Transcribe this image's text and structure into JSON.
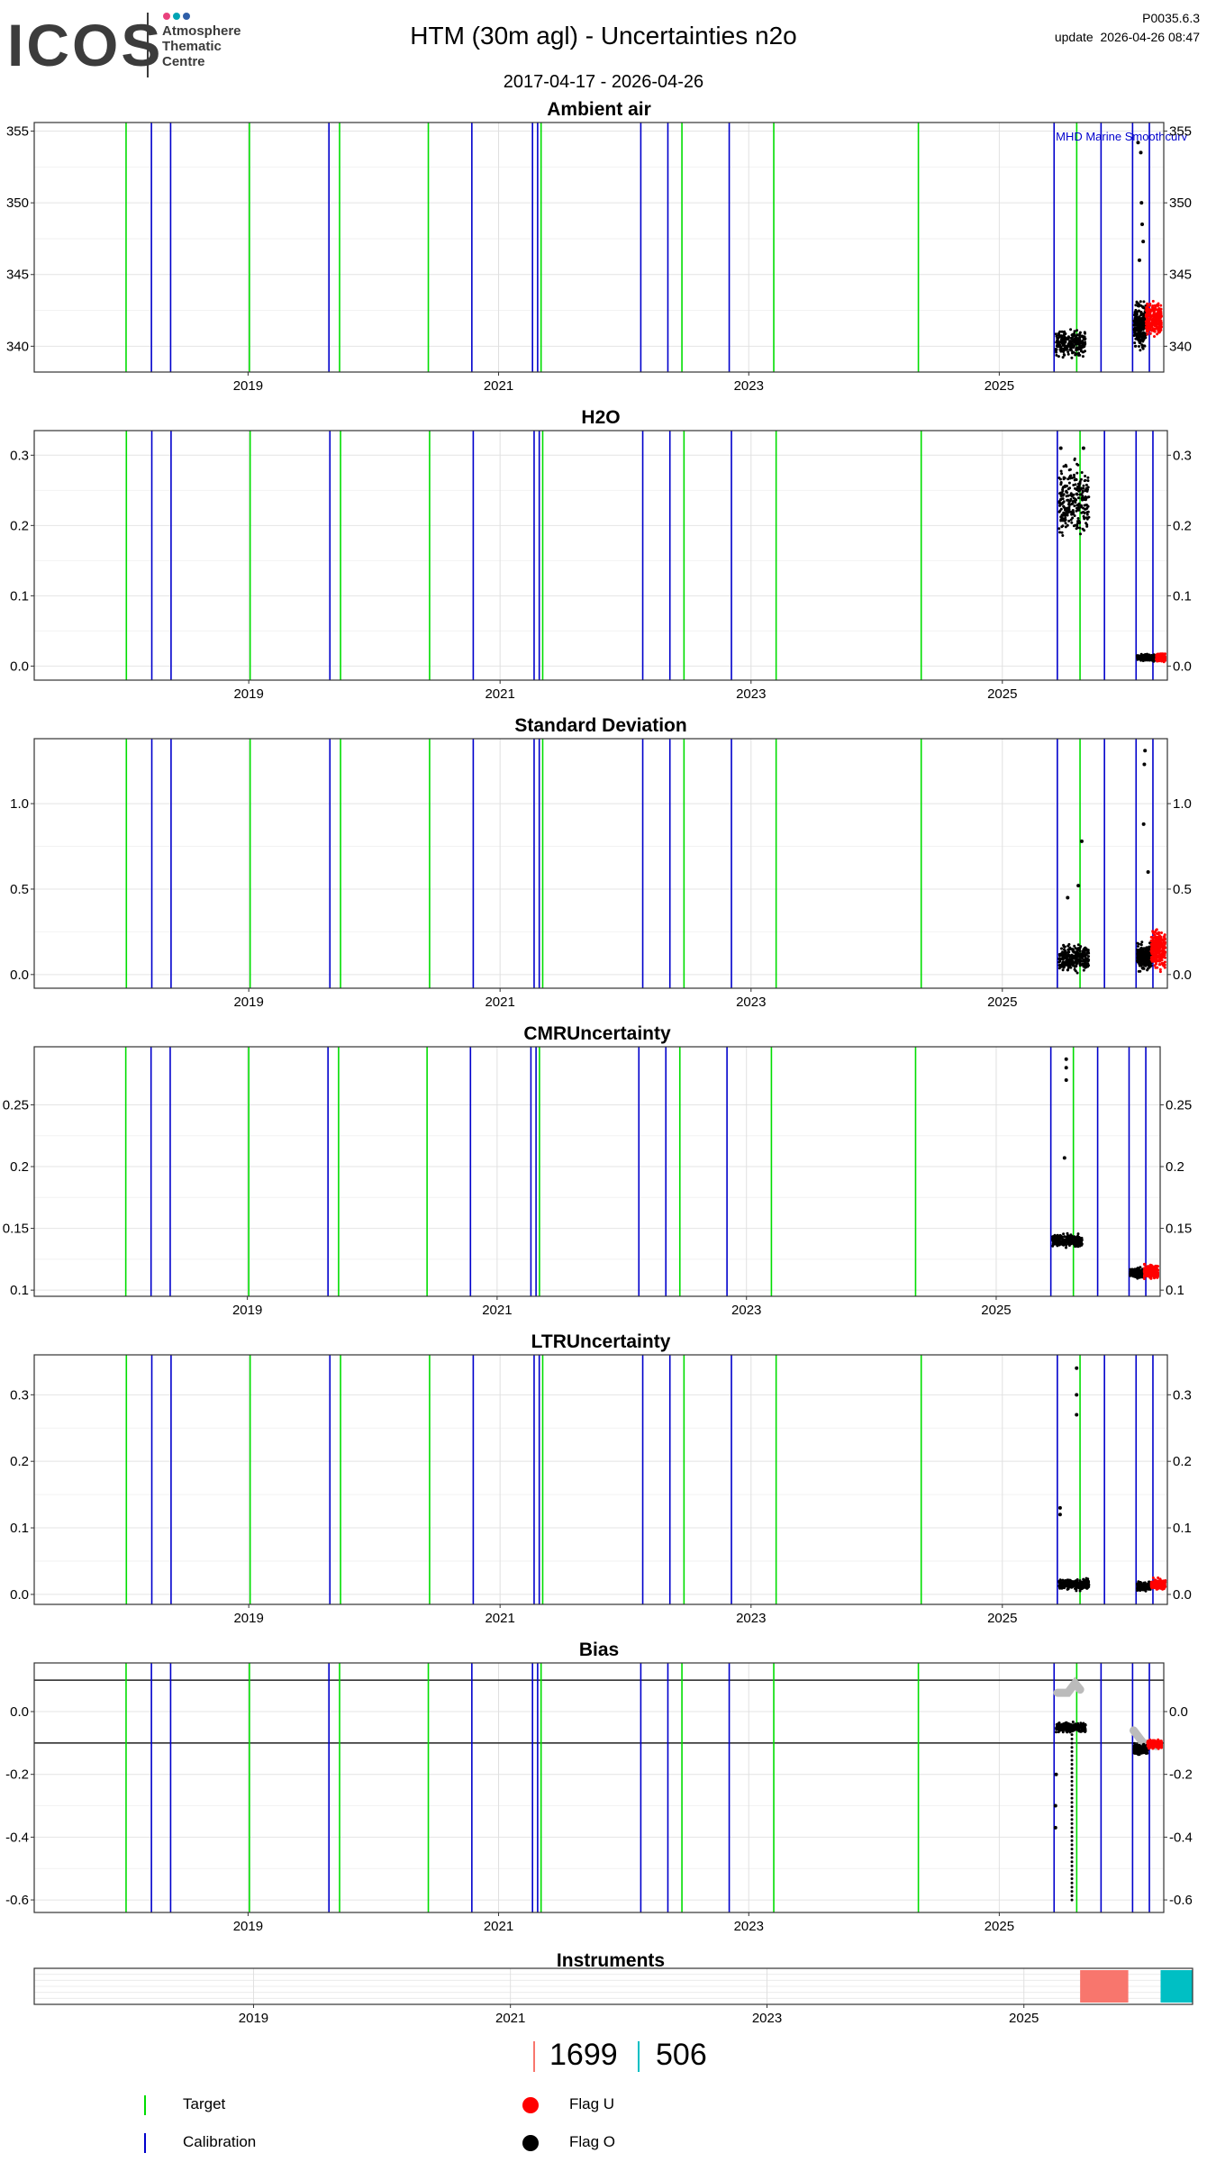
{
  "header": {
    "logo_text": "ICOS",
    "logo_sub": [
      "Atmosphere",
      "Thematic",
      "Centre"
    ],
    "title": "HTM  (30m agl) - Uncertainties n2o",
    "date_range": "2017-04-17 - 2026-04-26",
    "version": "P0035.6.3",
    "update": "update  2026-04-26 08:47"
  },
  "colors": {
    "target": "#00dd00",
    "calibration": "#0000cc",
    "flag_u": "#ff0000",
    "flag_o": "#000000",
    "instrument_a": "#f8766d",
    "instrument_b": "#00bfc4",
    "smooth": "#bbbbbb"
  },
  "chart_data": {
    "type": "scatter",
    "x_range": [
      "2017-04-17",
      "2026-04-26"
    ],
    "x_ticks": [
      "2019",
      "2021",
      "2023",
      "2025"
    ],
    "target_lines": [
      "2018-01-10",
      "2019-01-05",
      "2019-09-25",
      "2020-06-10",
      "2021-05-05",
      "2022-06-20",
      "2023-03-15",
      "2024-05-10",
      "2025-08-15"
    ],
    "calibration_lines": [
      "2018-03-25",
      "2018-05-20",
      "2019-08-25",
      "2020-10-15",
      "2021-04-10",
      "2021-04-25",
      "2022-02-20",
      "2022-05-10",
      "2022-11-05",
      "2025-06-10",
      "2025-10-25",
      "2026-01-25",
      "2026-03-15"
    ],
    "panels": [
      {
        "title": "Ambient air",
        "y_ticks": [
          340,
          345,
          350,
          355
        ],
        "y_range": [
          338.2,
          355.6
        ],
        "annotation": "MHD Marine Smoothcurv",
        "clusters": [
          {
            "flag": "O",
            "x_start": "2025-06-15",
            "x_end": "2025-09-10",
            "y_center": 340.2,
            "spread": 0.7
          },
          {
            "flag": "O",
            "x_start": "2026-01-28",
            "x_end": "2026-03-05",
            "y_center": 341.5,
            "spread": 1.2
          },
          {
            "flag": "U",
            "x_start": "2026-03-05",
            "x_end": "2026-04-20",
            "y_center": 341.8,
            "spread": 0.9
          }
        ],
        "outliers": [
          {
            "x": "2026-02-10",
            "y": 354.2
          },
          {
            "x": "2026-02-18",
            "y": 353.5
          },
          {
            "x": "2026-02-20",
            "y": 350.0
          },
          {
            "x": "2026-02-22",
            "y": 348.5
          },
          {
            "x": "2026-02-25",
            "y": 347.3
          },
          {
            "x": "2026-02-14",
            "y": 346.0
          }
        ]
      },
      {
        "title": "H2O",
        "y_ticks": [
          0.0,
          0.1,
          0.2,
          0.3
        ],
        "y_range": [
          -0.02,
          0.335
        ],
        "clusters": [
          {
            "flag": "O",
            "x_start": "2025-06-15",
            "x_end": "2025-09-10",
            "y_center": 0.235,
            "spread": 0.04
          },
          {
            "flag": "O",
            "x_start": "2026-01-28",
            "x_end": "2026-03-25",
            "y_center": 0.012,
            "spread": 0.004
          },
          {
            "flag": "U",
            "x_start": "2026-03-25",
            "x_end": "2026-04-20",
            "y_center": 0.012,
            "spread": 0.004
          }
        ],
        "outliers": [
          {
            "x": "2025-08-25",
            "y": 0.31
          },
          {
            "x": "2025-06-20",
            "y": 0.31
          }
        ]
      },
      {
        "title": "Standard Deviation",
        "y_ticks": [
          0.0,
          0.5,
          1.0
        ],
        "y_range": [
          -0.08,
          1.38
        ],
        "clusters": [
          {
            "flag": "O",
            "x_start": "2025-06-15",
            "x_end": "2025-09-10",
            "y_center": 0.1,
            "spread": 0.06
          },
          {
            "flag": "O",
            "x_start": "2026-01-28",
            "x_end": "2026-03-10",
            "y_center": 0.1,
            "spread": 0.06
          },
          {
            "flag": "U",
            "x_start": "2026-03-10",
            "x_end": "2026-04-20",
            "y_center": 0.15,
            "spread": 0.09
          }
        ],
        "outliers": [
          {
            "x": "2025-08-20",
            "y": 0.78
          },
          {
            "x": "2025-08-10",
            "y": 0.52
          },
          {
            "x": "2025-07-10",
            "y": 0.45
          },
          {
            "x": "2026-02-20",
            "y": 1.31
          },
          {
            "x": "2026-02-18",
            "y": 1.23
          },
          {
            "x": "2026-02-16",
            "y": 0.88
          },
          {
            "x": "2026-03-01",
            "y": 0.6
          }
        ]
      },
      {
        "title": "CMRUncertainty",
        "y_ticks": [
          0.1,
          0.15,
          0.2,
          0.25
        ],
        "y_range": [
          0.095,
          0.297
        ],
        "clusters": [
          {
            "flag": "O",
            "x_start": "2025-06-15",
            "x_end": "2025-09-10",
            "y_center": 0.14,
            "spread": 0.004
          },
          {
            "flag": "O",
            "x_start": "2026-01-28",
            "x_end": "2026-03-10",
            "y_center": 0.114,
            "spread": 0.003
          },
          {
            "flag": "U",
            "x_start": "2026-03-10",
            "x_end": "2026-04-20",
            "y_center": 0.115,
            "spread": 0.004
          }
        ],
        "outliers": [
          {
            "x": "2025-07-25",
            "y": 0.287
          },
          {
            "x": "2025-07-25",
            "y": 0.28
          },
          {
            "x": "2025-07-25",
            "y": 0.27
          },
          {
            "x": "2025-07-20",
            "y": 0.207
          }
        ]
      },
      {
        "title": "LTRUncertainty",
        "y_ticks": [
          0.0,
          0.1,
          0.2,
          0.3
        ],
        "y_range": [
          -0.015,
          0.36
        ],
        "clusters": [
          {
            "flag": "O",
            "x_start": "2025-06-15",
            "x_end": "2025-09-10",
            "y_center": 0.015,
            "spread": 0.006
          },
          {
            "flag": "O",
            "x_start": "2026-01-28",
            "x_end": "2026-03-10",
            "y_center": 0.012,
            "spread": 0.005
          },
          {
            "flag": "U",
            "x_start": "2026-03-10",
            "x_end": "2026-04-20",
            "y_center": 0.015,
            "spread": 0.006
          }
        ],
        "outliers": [
          {
            "x": "2025-08-05",
            "y": 0.34
          },
          {
            "x": "2025-08-05",
            "y": 0.3
          },
          {
            "x": "2025-08-05",
            "y": 0.27
          },
          {
            "x": "2025-06-18",
            "y": 0.13
          },
          {
            "x": "2025-06-18",
            "y": 0.12
          }
        ]
      },
      {
        "title": "Bias",
        "y_ticks": [
          -0.6,
          -0.4,
          -0.2,
          0.0
        ],
        "y_range": [
          -0.64,
          0.155
        ],
        "reference_lines": [
          0.1,
          -0.1
        ],
        "clusters": [
          {
            "flag": "O",
            "x_start": "2025-06-15",
            "x_end": "2025-09-10",
            "y_center": -0.05,
            "spread": 0.012
          },
          {
            "flag": "O",
            "x_start": "2026-01-28",
            "x_end": "2026-03-10",
            "y_center": -0.12,
            "spread": 0.012
          },
          {
            "flag": "U",
            "x_start": "2026-03-10",
            "x_end": "2026-04-20",
            "y_center": -0.105,
            "spread": 0.01
          }
        ],
        "smooth": [
          {
            "x": "2025-06-20",
            "y": 0.06
          },
          {
            "x": "2025-07-20",
            "y": 0.06
          },
          {
            "x": "2025-08-10",
            "y": 0.09
          },
          {
            "x": "2025-08-25",
            "y": 0.07
          },
          {
            "x": "2026-01-28",
            "y": -0.06
          },
          {
            "x": "2026-02-25",
            "y": -0.1
          },
          {
            "x": "2026-04-05",
            "y": -0.11
          }
        ],
        "drop_line": {
          "x": "2025-08-01",
          "y_from": -0.06,
          "y_to": -0.6
        },
        "outliers": [
          {
            "x": "2025-06-14",
            "y": -0.37
          },
          {
            "x": "2025-06-14",
            "y": -0.3
          },
          {
            "x": "2025-06-16",
            "y": -0.2
          }
        ]
      }
    ],
    "instruments": {
      "title": "Instruments",
      "bars": [
        {
          "name": "1699",
          "x_start": "2025-06-10",
          "x_end": "2025-10-25"
        },
        {
          "name": "506",
          "x_start": "2026-01-25",
          "x_end": "2026-04-26"
        }
      ]
    }
  },
  "legend": {
    "target_label": "Target",
    "calibration_label": "Calibration",
    "flag_u_label": "Flag U",
    "flag_o_label": "Flag O",
    "instrument_a": "1699",
    "instrument_b": "506"
  }
}
